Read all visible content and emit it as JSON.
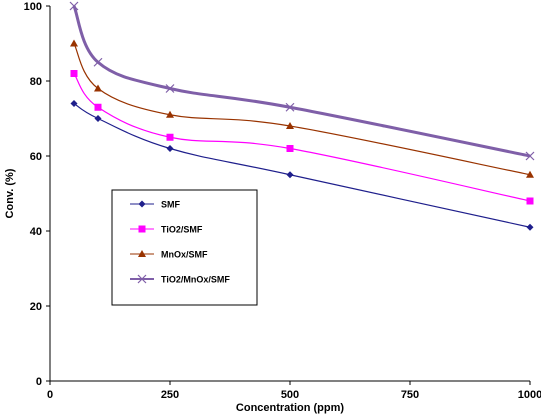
{
  "chart_data": {
    "type": "line",
    "xlabel": "Concentration (ppm)",
    "ylabel": "Conv. (%)",
    "xlim": [
      0,
      1000
    ],
    "ylim": [
      0,
      100
    ],
    "xticks": [
      0,
      250,
      500,
      750,
      1000
    ],
    "yticks": [
      0,
      20,
      40,
      60,
      80,
      100
    ],
    "grid": false,
    "legend_position": "left-middle",
    "x": [
      50,
      100,
      250,
      500,
      1000
    ],
    "series": [
      {
        "name": "SMF",
        "values": [
          74,
          70,
          62,
          55,
          41
        ],
        "color": "#1f1f8c",
        "marker": "diamond"
      },
      {
        "name": "TiO2/SMF",
        "values": [
          82,
          73,
          65,
          62,
          48
        ],
        "color": "#ff00ff",
        "marker": "square"
      },
      {
        "name": "MnOx/SMF",
        "values": [
          90,
          78,
          71,
          68,
          55
        ],
        "color": "#993300",
        "marker": "triangle"
      },
      {
        "name": "TiO2/MnOx/SMF",
        "values": [
          100,
          85,
          78,
          73,
          60
        ],
        "color": "#7f5fa8",
        "marker": "x"
      }
    ]
  }
}
